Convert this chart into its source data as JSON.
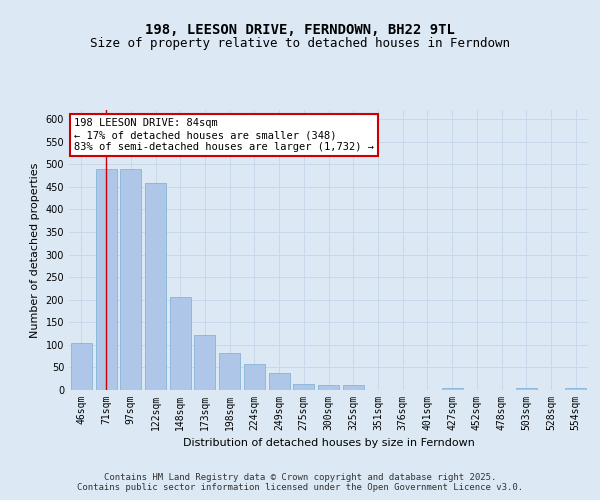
{
  "title": "198, LEESON DRIVE, FERNDOWN, BH22 9TL",
  "subtitle": "Size of property relative to detached houses in Ferndown",
  "xlabel": "Distribution of detached houses by size in Ferndown",
  "ylabel": "Number of detached properties",
  "categories": [
    "46sqm",
    "71sqm",
    "97sqm",
    "122sqm",
    "148sqm",
    "173sqm",
    "198sqm",
    "224sqm",
    "249sqm",
    "275sqm",
    "300sqm",
    "325sqm",
    "351sqm",
    "376sqm",
    "401sqm",
    "427sqm",
    "452sqm",
    "478sqm",
    "503sqm",
    "528sqm",
    "554sqm"
  ],
  "values": [
    105,
    490,
    490,
    458,
    207,
    122,
    83,
    58,
    38,
    13,
    10,
    11,
    0,
    0,
    0,
    5,
    0,
    0,
    5,
    0,
    4
  ],
  "bar_color": "#aec6e8",
  "bar_edge_color": "#7aaed4",
  "vline_x": 1,
  "vline_color": "#cc0000",
  "annotation_text": "198 LEESON DRIVE: 84sqm\n← 17% of detached houses are smaller (348)\n83% of semi-detached houses are larger (1,732) →",
  "annotation_box_color": "#ffffff",
  "annotation_box_edgecolor": "#cc0000",
  "grid_color": "#c8d8ea",
  "background_color": "#dce9f5",
  "plot_bg_color": "#dce9f5",
  "ylim": [
    0,
    620
  ],
  "yticks": [
    0,
    50,
    100,
    150,
    200,
    250,
    300,
    350,
    400,
    450,
    500,
    550,
    600
  ],
  "footer_text": "Contains HM Land Registry data © Crown copyright and database right 2025.\nContains public sector information licensed under the Open Government Licence v3.0.",
  "title_fontsize": 10,
  "subtitle_fontsize": 9,
  "axis_label_fontsize": 8,
  "tick_fontsize": 7,
  "annotation_fontsize": 7.5,
  "footer_fontsize": 6.5
}
